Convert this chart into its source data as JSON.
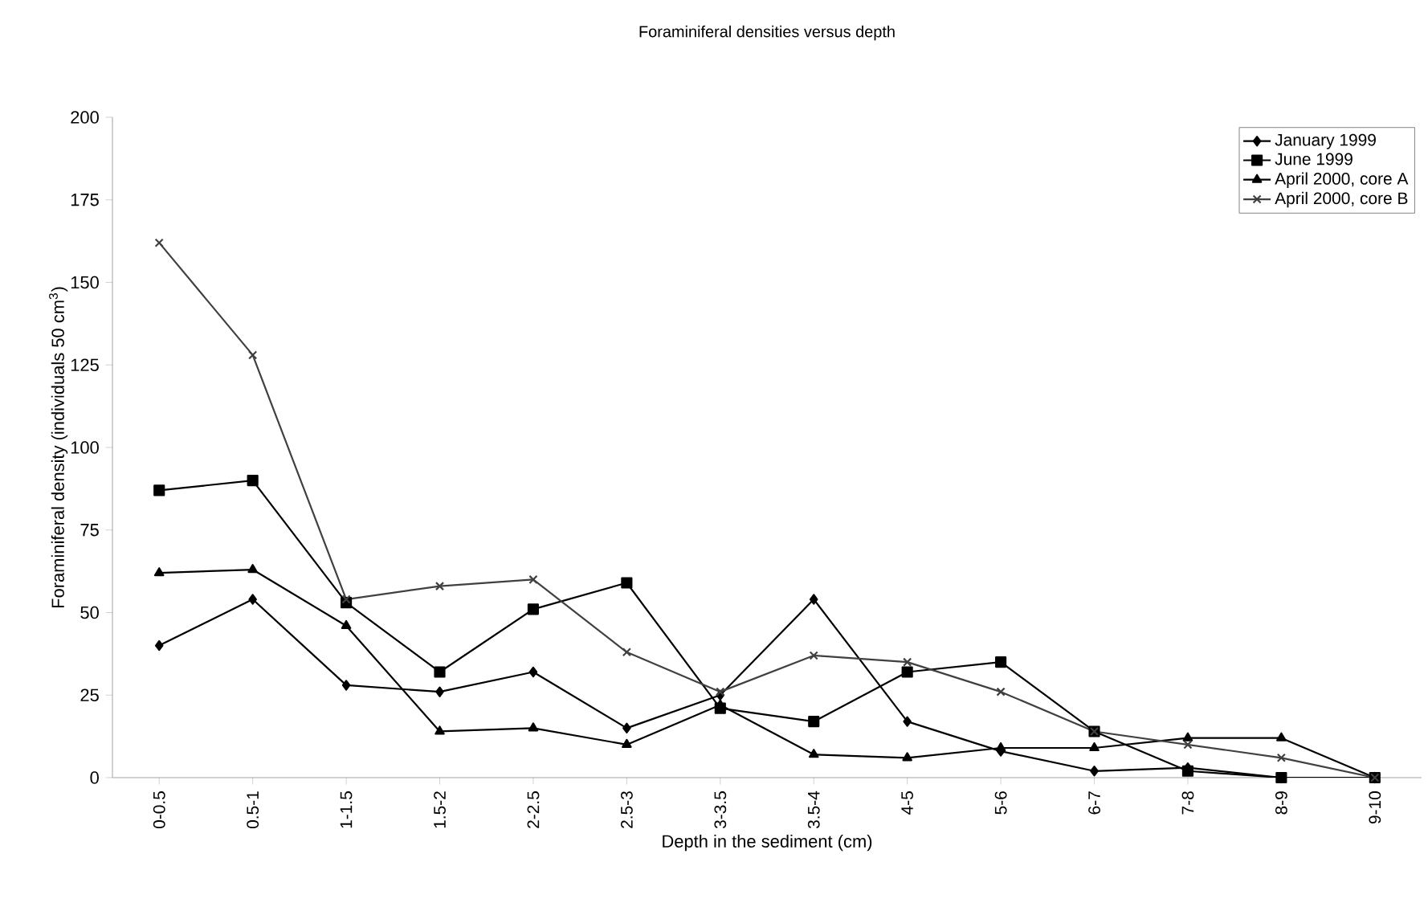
{
  "chart_data": {
    "type": "line",
    "title": "Foraminiferal densities versus depth",
    "xlabel": "Depth in the sediment (cm)",
    "ylabel": "Foraminiferal density (individuals 50 cm$^{3}$)",
    "categories": [
      "0-0.5",
      "0.5-1",
      "1-1.5",
      "1.5-2",
      "2-2.5",
      "2.5-3",
      "3-3.5",
      "3.5-4",
      "4-5",
      "5-6",
      "6-7",
      "7-8",
      "8-9",
      "9-10"
    ],
    "series": [
      {
        "name": "January 1999",
        "color": "#000000",
        "marker": "diamond",
        "values": [
          40,
          54,
          28,
          26,
          32,
          15,
          25,
          54,
          17,
          8,
          2,
          3,
          0,
          0
        ]
      },
      {
        "name": "June 1999",
        "color": "#000000",
        "marker": "square",
        "values": [
          87,
          90,
          53,
          32,
          51,
          59,
          21,
          17,
          32,
          35,
          14,
          2,
          0,
          0
        ]
      },
      {
        "name": "April 2000, core A",
        "color": "#000000",
        "marker": "triangle",
        "values": [
          62,
          63,
          46,
          14,
          15,
          10,
          22,
          7,
          6,
          9,
          9,
          12,
          12,
          0
        ]
      },
      {
        "name": "April 2000, core B",
        "color": "#404040",
        "marker": "cross",
        "values": [
          162,
          128,
          54,
          58,
          60,
          38,
          26,
          37,
          35,
          26,
          14,
          10,
          6,
          0
        ]
      }
    ],
    "ylim": [
      0,
      200
    ],
    "yticks": [
      0,
      25,
      50,
      75,
      100,
      125,
      150,
      175,
      200
    ],
    "grid": false,
    "legend": "top right",
    "line_style": "solid"
  }
}
